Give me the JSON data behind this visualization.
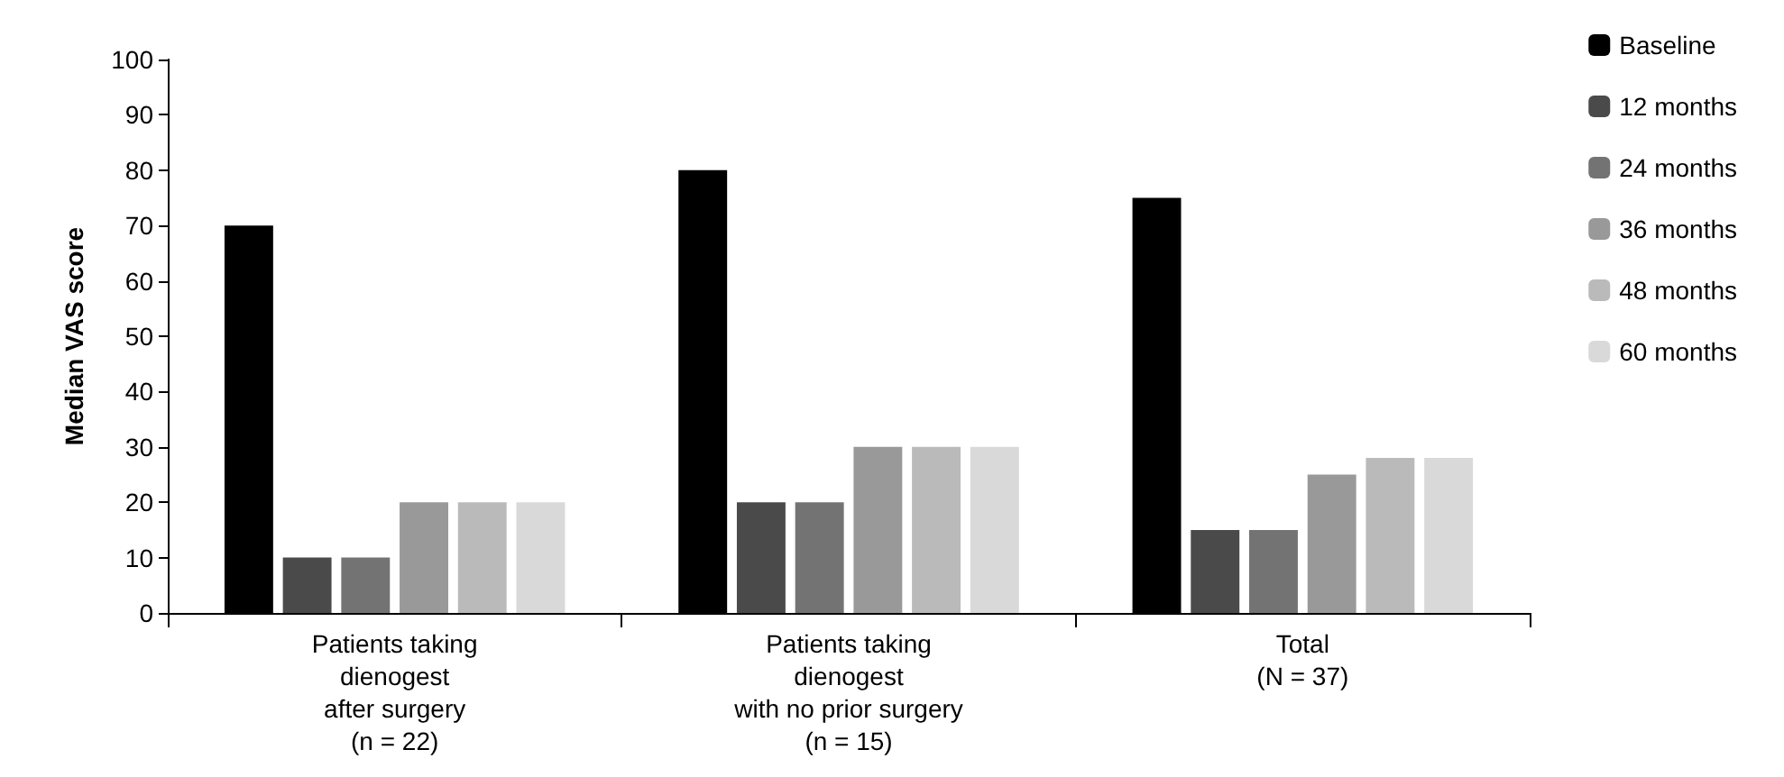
{
  "chart_data": {
    "type": "bar",
    "ylabel": "Median VAS score",
    "categories": [
      "Patients taking\ndienogest\nafter surgery\n(n = 22)",
      "Patients taking\ndienogest\nwith no prior surgery\n(n = 15)",
      "Total\n(N = 37)"
    ],
    "series": [
      {
        "name": "Baseline",
        "color": "#000000",
        "values": [
          70,
          80,
          75
        ]
      },
      {
        "name": "12 months",
        "color": "#4a4a4a",
        "values": [
          10,
          20,
          15
        ]
      },
      {
        "name": "24 months",
        "color": "#737373",
        "values": [
          10,
          20,
          15
        ]
      },
      {
        "name": "36 months",
        "color": "#999999",
        "values": [
          20,
          30,
          25
        ]
      },
      {
        "name": "48 months",
        "color": "#bababa",
        "values": [
          20,
          30,
          28
        ]
      },
      {
        "name": "60 months",
        "color": "#d9d9d9",
        "values": [
          20,
          30,
          28
        ]
      }
    ],
    "ylim": [
      0,
      100
    ],
    "yticks": [
      0,
      10,
      20,
      30,
      40,
      50,
      60,
      70,
      80,
      90,
      100
    ],
    "grid": false,
    "legend": "right"
  }
}
